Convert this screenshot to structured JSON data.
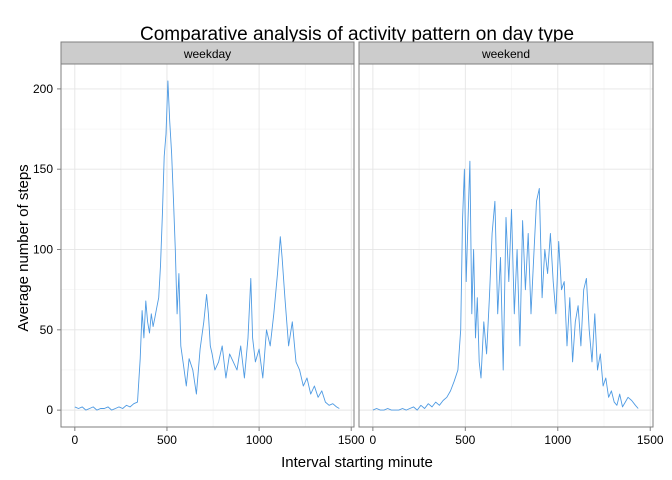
{
  "chart_data": {
    "type": "line",
    "title": "Comparative analysis of activity pattern on day type",
    "xlabel": "Interval starting minute",
    "ylabel": "Average number of steps",
    "xlim": [
      -75,
      1515
    ],
    "ylim": [
      -10.5,
      215.5
    ],
    "x_ticks": [
      0,
      500,
      1000,
      1500
    ],
    "y_ticks": [
      0,
      50,
      100,
      150,
      200
    ],
    "x_tick_labels": [
      "0",
      "500",
      "1000",
      "1500"
    ],
    "y_tick_labels": [
      "0",
      "50",
      "100",
      "150",
      "200"
    ],
    "grid": true,
    "line_color": "#4f9be3",
    "panels": [
      {
        "name": "weekday",
        "x": [
          0,
          20,
          40,
          60,
          80,
          100,
          120,
          140,
          160,
          180,
          200,
          220,
          240,
          260,
          280,
          300,
          320,
          340,
          355,
          365,
          375,
          385,
          395,
          405,
          415,
          425,
          435,
          445,
          455,
          465,
          475,
          485,
          495,
          505,
          515,
          525,
          535,
          545,
          555,
          565,
          575,
          590,
          605,
          620,
          640,
          660,
          680,
          700,
          715,
          725,
          735,
          745,
          760,
          780,
          800,
          820,
          840,
          860,
          880,
          900,
          920,
          940,
          955,
          965,
          980,
          1000,
          1020,
          1040,
          1060,
          1080,
          1100,
          1115,
          1125,
          1140,
          1160,
          1180,
          1200,
          1220,
          1240,
          1260,
          1280,
          1300,
          1320,
          1340,
          1360,
          1380,
          1400,
          1420,
          1435
        ],
        "values": [
          2,
          1,
          2,
          0,
          1,
          2,
          0,
          1,
          1,
          2,
          0,
          1,
          2,
          1,
          3,
          2,
          4,
          5,
          32,
          62,
          45,
          68,
          55,
          48,
          60,
          52,
          58,
          64,
          70,
          90,
          122,
          158,
          172,
          205,
          180,
          160,
          132,
          100,
          60,
          85,
          40,
          28,
          15,
          32,
          25,
          10,
          38,
          55,
          72,
          60,
          40,
          35,
          25,
          30,
          40,
          20,
          35,
          30,
          25,
          40,
          20,
          45,
          82,
          45,
          30,
          38,
          20,
          50,
          40,
          60,
          85,
          108,
          95,
          70,
          40,
          55,
          30,
          25,
          15,
          20,
          10,
          15,
          8,
          12,
          5,
          3,
          4,
          2,
          1
        ]
      },
      {
        "name": "weekend",
        "x": [
          0,
          20,
          40,
          60,
          80,
          100,
          120,
          140,
          160,
          180,
          200,
          220,
          240,
          260,
          280,
          300,
          320,
          340,
          360,
          380,
          400,
          420,
          440,
          460,
          475,
          485,
          495,
          505,
          515,
          525,
          535,
          545,
          555,
          565,
          575,
          585,
          600,
          615,
          630,
          645,
          660,
          675,
          690,
          705,
          720,
          735,
          750,
          765,
          780,
          795,
          810,
          825,
          840,
          855,
          870,
          885,
          900,
          915,
          930,
          945,
          960,
          975,
          990,
          1005,
          1020,
          1035,
          1050,
          1065,
          1080,
          1095,
          1110,
          1125,
          1140,
          1155,
          1170,
          1185,
          1200,
          1215,
          1230,
          1245,
          1260,
          1275,
          1290,
          1305,
          1320,
          1335,
          1350,
          1365,
          1380,
          1400,
          1420,
          1435
        ],
        "values": [
          0,
          1,
          0,
          0,
          1,
          0,
          0,
          0,
          1,
          0,
          1,
          2,
          0,
          3,
          1,
          4,
          2,
          5,
          3,
          6,
          8,
          12,
          18,
          25,
          50,
          118,
          150,
          80,
          120,
          155,
          60,
          100,
          45,
          70,
          30,
          20,
          55,
          35,
          70,
          110,
          130,
          60,
          95,
          25,
          120,
          80,
          125,
          60,
          100,
          40,
          118,
          75,
          110,
          60,
          95,
          130,
          138,
          70,
          100,
          85,
          110,
          80,
          60,
          105,
          75,
          80,
          40,
          70,
          30,
          55,
          65,
          40,
          75,
          82,
          50,
          30,
          60,
          25,
          35,
          15,
          20,
          8,
          12,
          5,
          3,
          10,
          2,
          5,
          8,
          6,
          3,
          1
        ]
      }
    ]
  }
}
